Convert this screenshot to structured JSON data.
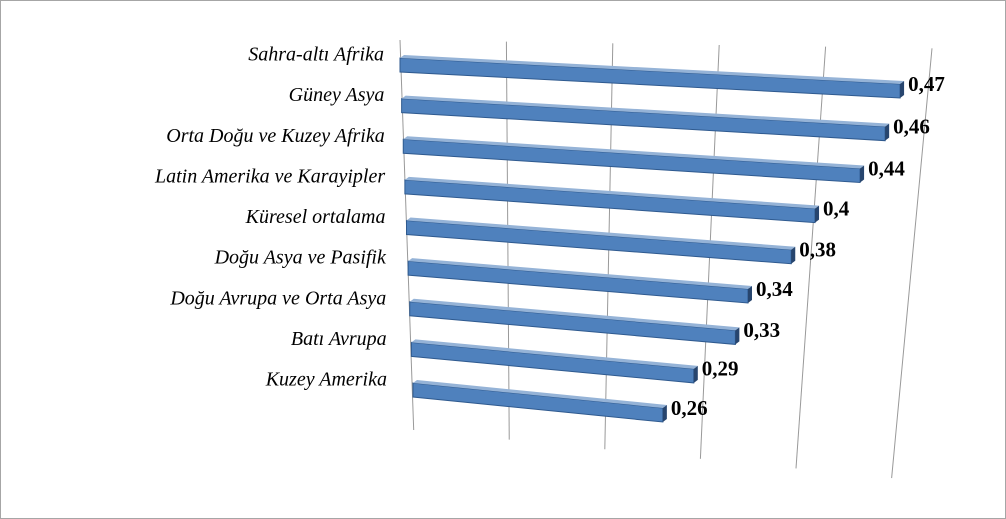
{
  "chart_data": {
    "type": "bar",
    "orientation": "horizontal",
    "categories": [
      "Sahra-altı Afrika",
      "Güney Asya",
      "Orta Doğu ve Kuzey Afrika",
      "Latin Amerika ve Karayipler",
      "Küresel ortalama",
      "Doğu Asya ve Pasifik",
      "Doğu Avrupa ve Orta Asya",
      "Batı Avrupa",
      "Kuzey Amerika"
    ],
    "values": [
      0.47,
      0.46,
      0.44,
      0.4,
      0.38,
      0.34,
      0.33,
      0.29,
      0.26
    ],
    "value_labels": [
      "0,47",
      "0,46",
      "0,44",
      "0,4",
      "0,38",
      "0,34",
      "0,33",
      "0,29",
      "0,26"
    ],
    "color": "#4f81bd",
    "xlim": [
      0,
      0.5
    ],
    "xticks": [
      0,
      0.1,
      0.2,
      0.3,
      0.4,
      0.5
    ],
    "grid": true
  }
}
